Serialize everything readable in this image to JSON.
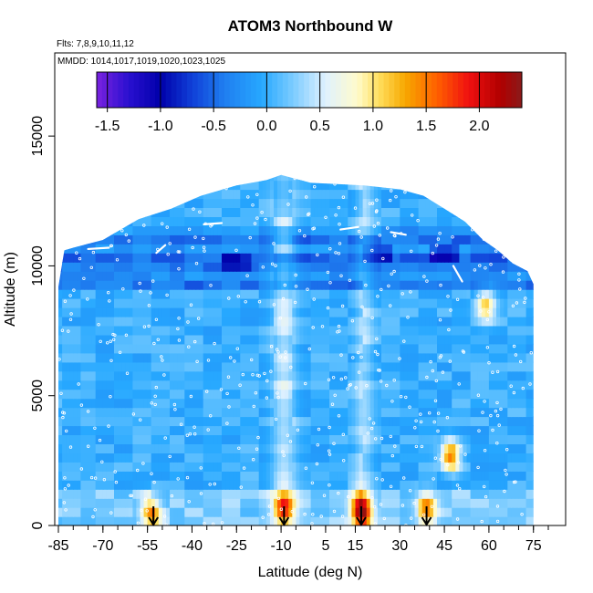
{
  "chart_data": {
    "type": "heatmap",
    "title": "ATOM3 Northbound W",
    "subtitle_lines": [
      "Flts: 7,8,9,10,11,12",
      "MMDD: 1014,1017,1019,1020,1023,1025"
    ],
    "xlabel": "Latitude (deg N)",
    "ylabel": "Altitude (m)",
    "xlim": [
      -85,
      80
    ],
    "ylim": [
      0,
      17500
    ],
    "x_ticks": [
      -85,
      -70,
      -55,
      -40,
      -25,
      -10,
      5,
      15,
      30,
      45,
      60,
      75
    ],
    "x_tick_labels": [
      "-85",
      "-70",
      "-55",
      "-40",
      "-25",
      "-10",
      "5",
      "15",
      "30",
      "45",
      "60",
      "75"
    ],
    "x_minor_step": 5,
    "y_ticks": [
      0,
      5000,
      10000,
      15000
    ],
    "y_tick_labels": [
      "0",
      "5000",
      "10000",
      "15000"
    ],
    "grid": false,
    "colorbar": {
      "position": "top-inside",
      "range": [
        -1.6,
        2.4
      ],
      "ticks": [
        -1.5,
        -1.0,
        -0.5,
        0.0,
        0.5,
        1.0,
        1.5,
        2.0
      ],
      "tick_labels": [
        "-1.5",
        "-1.0",
        "-0.5",
        "0.0",
        "0.5",
        "1.0",
        "1.5",
        "2.0"
      ],
      "color_stops": [
        {
          "v": -1.6,
          "c": "#7a22e0"
        },
        {
          "v": -1.3,
          "c": "#2a10d0"
        },
        {
          "v": -1.0,
          "c": "#0000aa"
        },
        {
          "v": -0.7,
          "c": "#1040d8"
        },
        {
          "v": -0.4,
          "c": "#1f7ef0"
        },
        {
          "v": -0.05,
          "c": "#26a8ff"
        },
        {
          "v": 0.25,
          "c": "#7cccff"
        },
        {
          "v": 0.55,
          "c": "#dff1ff"
        },
        {
          "v": 0.85,
          "c": "#fffbcc"
        },
        {
          "v": 1.05,
          "c": "#ffe060"
        },
        {
          "v": 1.3,
          "c": "#f7a800"
        },
        {
          "v": 1.6,
          "c": "#ff6000"
        },
        {
          "v": 1.9,
          "c": "#f01010"
        },
        {
          "v": 2.2,
          "c": "#b00000"
        },
        {
          "v": 2.4,
          "c": "#8a1a1a"
        }
      ]
    },
    "profile_arrows_lat": [
      -53,
      -9,
      17,
      39
    ],
    "hotspots": [
      {
        "lat": -54,
        "alt": 500,
        "value": 1.3
      },
      {
        "lat": -9,
        "alt": 700,
        "value": 1.1
      },
      {
        "lat": 17,
        "alt": 600,
        "value": 2.0
      },
      {
        "lat": 39,
        "alt": 700,
        "value": 1.2
      },
      {
        "lat": 47,
        "alt": 2700,
        "value": 1.6
      },
      {
        "lat": 59,
        "alt": 8500,
        "value": 1.1
      }
    ],
    "colors": {
      "axis": "#000000",
      "background": "#ffffff",
      "dots": "#ffffff"
    }
  }
}
